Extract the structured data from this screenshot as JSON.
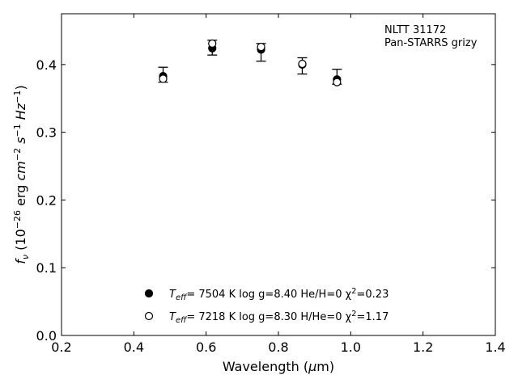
{
  "chart_data": {
    "type": "scatter",
    "title": "",
    "xlabel": "Wavelength (μm)",
    "ylabel": "fν (10⁻²⁶ erg cm⁻² s⁻¹ Hz⁻¹)",
    "xlim": [
      0.2,
      1.4
    ],
    "ylim": [
      0.0,
      0.475
    ],
    "xticks": [
      0.2,
      0.4,
      0.6,
      0.8,
      1.0,
      1.2,
      1.4
    ],
    "xtick_labels": [
      "0.2",
      "0.4",
      "0.6",
      "0.8",
      "1.0",
      "1.2",
      "1.4"
    ],
    "yticks": [
      0.0,
      0.1,
      0.2,
      0.3,
      0.4
    ],
    "ytick_labels": [
      "0.0",
      "0.1",
      "0.2",
      "0.3",
      "0.4"
    ],
    "grid": false,
    "annotation": {
      "line1": "NLTT 31172",
      "line2": "Pan-STARRS grizy"
    },
    "observed": {
      "x": [
        0.481,
        0.617,
        0.752,
        0.866,
        0.962
      ],
      "y": [
        0.385,
        0.425,
        0.418,
        0.398,
        0.382
      ],
      "yerr": [
        0.011,
        0.011,
        0.013,
        0.012,
        0.011
      ]
    },
    "series": [
      {
        "name": "Teff= 7504 K log g=8.40 He/H=0 χ²=0.23",
        "marker": "filled-circle",
        "x": [
          0.481,
          0.617,
          0.752,
          0.866,
          0.962
        ],
        "y": [
          0.383,
          0.424,
          0.422,
          0.4,
          0.378
        ]
      },
      {
        "name": "Teff= 7218 K log g=8.30 H/He=0 χ²=1.17",
        "marker": "open-circle",
        "x": [
          0.481,
          0.617,
          0.752,
          0.866,
          0.962
        ],
        "y": [
          0.379,
          0.431,
          0.426,
          0.401,
          0.374
        ]
      }
    ],
    "legend": {
      "placement": "bottom-center",
      "entries": [
        {
          "teff_label": "T",
          "teff_sub": "eff",
          "text": "=  7504 K  log g=8.40  He/H=0  χ",
          "chi_sup": "2",
          "chi_val": "=0.23"
        },
        {
          "teff_label": "T",
          "teff_sub": "eff",
          "text": "=  7218 K  log g=8.30  H/He=0  χ",
          "chi_sup": "2",
          "chi_val": "=1.17"
        }
      ]
    }
  }
}
